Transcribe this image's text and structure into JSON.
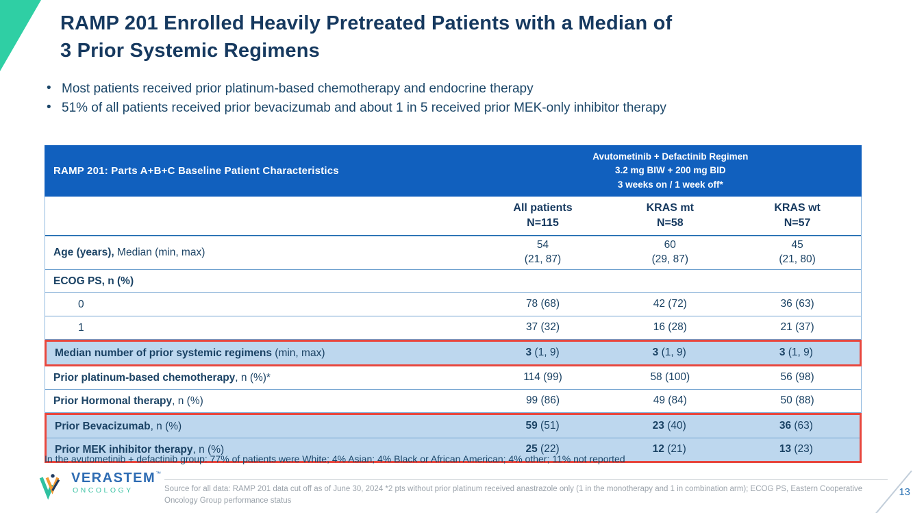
{
  "slide": {
    "title": "RAMP 201 Enrolled Heavily Pretreated Patients with a Median of\n3 Prior Systemic Regimens",
    "bullets": [
      "Most patients received prior platinum-based chemotherapy and endocrine therapy",
      "51% of all patients received prior bevacizumab and about 1 in 5 received prior MEK-only inhibitor therapy"
    ],
    "note": "In the avutometinib + defactinib group: 77% of patients were White; 4% Asian; 4% Black or African American; 4% other; 11% not reported",
    "page_number": "13"
  },
  "table": {
    "header_left": "RAMP 201: Parts A+B+C Baseline Patient Characteristics",
    "header_right_lines": [
      "Avutometinib + Defactinib Regimen",
      "3.2 mg BIW + 200 mg BID",
      "3 weeks on / 1 week off*"
    ],
    "columns": [
      {
        "label": "All patients",
        "n": "N=115"
      },
      {
        "label": "KRAS mt",
        "n": "N=58"
      },
      {
        "label": "KRAS wt",
        "n": "N=57"
      }
    ],
    "rows": [
      {
        "label": [
          {
            "t": "Age (years),",
            "b": true
          },
          {
            "t": " Median (min, max)"
          }
        ],
        "tall": true,
        "cells": [
          [
            {
              "t": "54\n(21, 87)"
            }
          ],
          [
            {
              "t": "60\n(29, 87)"
            }
          ],
          [
            {
              "t": "45\n(21, 80)"
            }
          ]
        ]
      },
      {
        "label": [
          {
            "t": "ECOG PS, n (%)",
            "b": true
          }
        ],
        "cells": [
          [],
          [],
          []
        ]
      },
      {
        "label": [
          {
            "t": "0"
          }
        ],
        "indent": true,
        "cells": [
          [
            {
              "t": "78 (68)"
            }
          ],
          [
            {
              "t": "42 (72)"
            }
          ],
          [
            {
              "t": "36 (63)"
            }
          ]
        ]
      },
      {
        "label": [
          {
            "t": "1"
          }
        ],
        "indent": true,
        "cells": [
          [
            {
              "t": "37 (32)"
            }
          ],
          [
            {
              "t": "16 (28)"
            }
          ],
          [
            {
              "t": "21 (37)"
            }
          ]
        ]
      },
      {
        "label": [
          {
            "t": "Median number of prior systemic regimens",
            "b": true
          },
          {
            "t": " (min, max)"
          }
        ],
        "highlight": true,
        "box": 1,
        "cells": [
          [
            {
              "t": "3",
              "b": true
            },
            {
              "t": " (1, 9)"
            }
          ],
          [
            {
              "t": "3",
              "b": true
            },
            {
              "t": " (1, 9)"
            }
          ],
          [
            {
              "t": "3",
              "b": true
            },
            {
              "t": " (1, 9)"
            }
          ]
        ]
      },
      {
        "label": [
          {
            "t": "Prior platinum-based chemotherapy",
            "b": true
          },
          {
            "t": ", n (%)*"
          }
        ],
        "cells": [
          [
            {
              "t": "114 (99)"
            }
          ],
          [
            {
              "t": "58 (100)"
            }
          ],
          [
            {
              "t": "56 (98)"
            }
          ]
        ]
      },
      {
        "label": [
          {
            "t": "Prior Hormonal therapy",
            "b": true
          },
          {
            "t": ", n (%)"
          }
        ],
        "cells": [
          [
            {
              "t": "99 (86)"
            }
          ],
          [
            {
              "t": "49 (84)"
            }
          ],
          [
            {
              "t": "50 (88)"
            }
          ]
        ]
      },
      {
        "label": [
          {
            "t": "Prior Bevacizumab",
            "b": true
          },
          {
            "t": ", n (%)"
          }
        ],
        "highlight": true,
        "box": 2,
        "cells": [
          [
            {
              "t": "59",
              "b": true
            },
            {
              "t": " (51)"
            }
          ],
          [
            {
              "t": "23",
              "b": true
            },
            {
              "t": " (40)"
            }
          ],
          [
            {
              "t": "36",
              "b": true
            },
            {
              "t": " (63)"
            }
          ]
        ]
      },
      {
        "label": [
          {
            "t": "Prior MEK inhibitor therapy",
            "b": true
          },
          {
            "t": ", n (%)"
          }
        ],
        "highlight": true,
        "box": 2,
        "cells": [
          [
            {
              "t": "25",
              "b": true
            },
            {
              "t": " (22)"
            }
          ],
          [
            {
              "t": "12",
              "b": true
            },
            {
              "t": " (21)"
            }
          ],
          [
            {
              "t": "13",
              "b": true
            },
            {
              "t": " (23)"
            }
          ]
        ]
      }
    ]
  },
  "footer": {
    "logo_name": "VERASTEM",
    "logo_tm": "™",
    "logo_sub": "ONCOLOGY",
    "source_text": "Source for all data: RAMP 201 data cut off as of June 30, 2024  *2 pts without prior platinum received anastrazole only (1 in the monotherapy and 1 in combination arm); ECOG PS, Eastern Cooperative Oncology Group performance status"
  },
  "colors": {
    "accent_teal": "#2FCFA4",
    "table_header_blue": "#1160BE",
    "highlight_blue": "#BDD7EE",
    "highlight_border_red": "#E8473E",
    "title_navy": "#16395F"
  }
}
